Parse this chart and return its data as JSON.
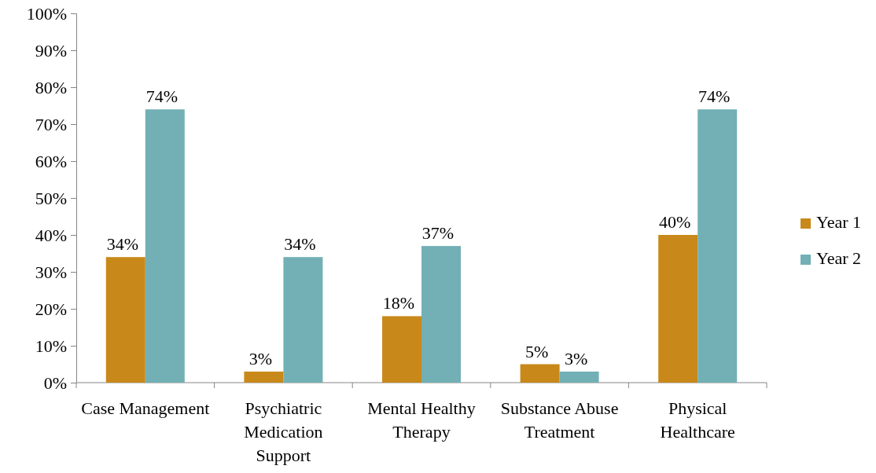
{
  "chart_data": {
    "type": "bar",
    "categories": [
      "Case Management",
      "Psychiatric Medication Support",
      "Mental Healthy Therapy",
      "Substance Abuse Treatment",
      "Physical Healthcare"
    ],
    "series": [
      {
        "name": "Year 1",
        "color": "#c8891a",
        "values": [
          34,
          3,
          18,
          5,
          40
        ]
      },
      {
        "name": "Year 2",
        "color": "#72b0b5",
        "values": [
          74,
          34,
          37,
          3,
          74
        ]
      }
    ],
    "ylim": [
      0,
      100
    ],
    "yticks": [
      {
        "value": 0,
        "label": "0%"
      },
      {
        "value": 10,
        "label": "10%"
      },
      {
        "value": 20,
        "label": "20%"
      },
      {
        "value": 30,
        "label": "30%"
      },
      {
        "value": 40,
        "label": "40%"
      },
      {
        "value": 50,
        "label": "50%"
      },
      {
        "value": 60,
        "label": "60%"
      },
      {
        "value": 70,
        "label": "70%"
      },
      {
        "value": 80,
        "label": "80%"
      },
      {
        "value": 90,
        "label": "90%"
      },
      {
        "value": 100,
        "label": "100%"
      }
    ],
    "value_labels": [
      [
        "34%",
        "3%",
        "18%",
        "5%",
        "40%"
      ],
      [
        "74%",
        "34%",
        "37%",
        "3%",
        "74%"
      ]
    ],
    "legend": "right",
    "grid": false
  }
}
